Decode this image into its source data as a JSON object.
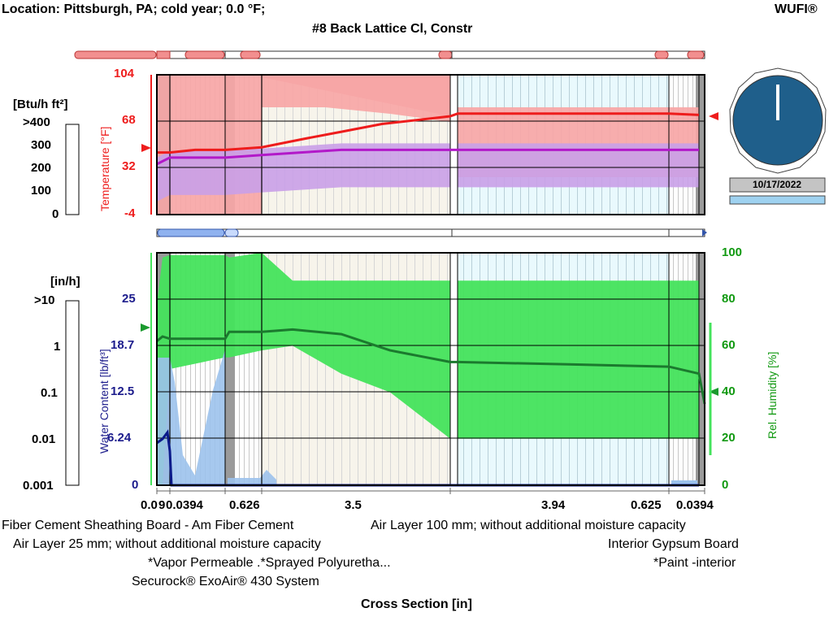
{
  "header": {
    "location": "Location: Pittsburgh, PA; cold year; 0.0 °F;",
    "logo": "WUFI®",
    "title": "#8 Back Lattice Cl, Constr"
  },
  "temperature_panel": {
    "flux_unit": "[Btu/h ft²]",
    "flux_ticks": [
      ">400",
      "300",
      "200",
      "100",
      "0"
    ],
    "axis_label": "Temperature [°F]",
    "axis_ticks": [
      "104",
      "68",
      "32",
      "-4"
    ],
    "temperature_range_F": [
      -4,
      104
    ],
    "temperature_profile_F": [
      44,
      44,
      46,
      46,
      48,
      54,
      60,
      66,
      72,
      74,
      74,
      74,
      73
    ],
    "rh_band_profile": [
      35,
      40,
      40,
      40,
      42,
      44,
      46,
      46,
      46,
      46,
      46,
      46,
      46
    ]
  },
  "clock": {
    "date": "10/17/2022",
    "colors": {
      "face": "#1f5f8b",
      "hand": "#ffffff"
    }
  },
  "moisture_panel": {
    "flux_unit": "[in/h]",
    "flux_ticks": [
      ">10",
      "1",
      "0.1",
      "0.01",
      "0.001"
    ],
    "water_axis_label": "Water Content [lb/ft³]",
    "water_ticks": [
      "25",
      "18.7",
      "12.5",
      "6.24",
      "0"
    ],
    "rh_axis_label": "Rel. Humidity [%]",
    "rh_ticks": [
      "100",
      "80",
      "60",
      "40",
      "20",
      "0"
    ],
    "rh_range_percent": [
      0,
      100
    ],
    "rh_profile_percent": [
      62,
      64,
      63,
      63,
      66,
      66,
      67,
      65,
      58,
      53,
      53,
      52,
      51,
      48
    ]
  },
  "cross_section": {
    "layer_thicknesses": [
      "0.0",
      "9",
      "0.0394",
      "0.626",
      "3.5",
      "3.94",
      "0.625",
      "0.0394"
    ],
    "axis_title": "Cross Section [in]"
  },
  "materials": [
    "Fiber Cement Sheathing Board - Am Fiber Cement",
    "Air Layer 100 mm; without additional moisture capacity",
    "Air Layer 25 mm; without additional moisture capacity",
    "Interior Gypsum Board",
    "*Vapor Permeable .*Sprayed Polyuretha...",
    "*Paint -interior",
    "Securock® ExoAir® 430 System"
  ],
  "colors": {
    "temperature_line": "#ee1c1c",
    "temperature_band": "#f7a6a6",
    "rh_band_top": "#c9a0e8",
    "rh_line_top": "#b219c9",
    "rh_band": "#44e35c",
    "rh_line": "#1b7a2e",
    "water_line": "#0b1a8a",
    "water_fill": "#9cc2ec"
  }
}
